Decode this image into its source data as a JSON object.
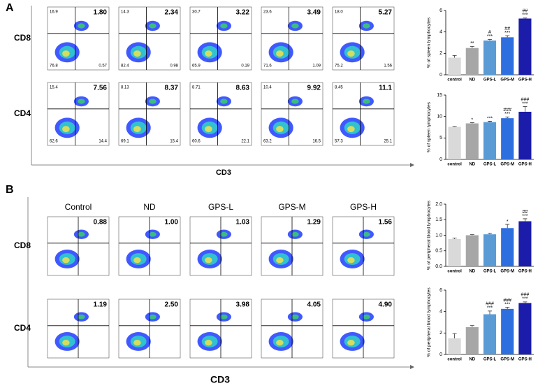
{
  "panel_a": {
    "label": "A",
    "row_labels": [
      "CD8",
      "CD4"
    ],
    "x_label": "CD3",
    "plots": [
      [
        {
          "q1": "16.9",
          "q2": "1.80",
          "q3": "76.8",
          "q4": "0.57"
        },
        {
          "q1": "14.3",
          "q2": "2.34",
          "q3": "82.4",
          "q4": "0.98"
        },
        {
          "q1": "30.7",
          "q2": "3.22",
          "q3": "65.9",
          "q4": "0.19"
        },
        {
          "q1": "23.6",
          "q2": "3.49",
          "q3": "71.6",
          "q4": "1.09"
        },
        {
          "q1": "18.0",
          "q2": "5.27",
          "q3": "75.2",
          "q4": "1.56"
        }
      ],
      [
        {
          "q1": "15.4",
          "q2": "7.56",
          "q3": "62.6",
          "q4": "14.4"
        },
        {
          "q1": "8.13",
          "q2": "8.37",
          "q3": "69.1",
          "q4": "15.4"
        },
        {
          "q1": "8.71",
          "q2": "8.63",
          "q3": "60.6",
          "q4": "22.1"
        },
        {
          "q1": "10.4",
          "q2": "9.92",
          "q3": "63.2",
          "q4": "16.5"
        },
        {
          "q1": "8.45",
          "q2": "11.1",
          "q3": "57.3",
          "q4": "25.1"
        }
      ]
    ]
  },
  "panel_b": {
    "label": "B",
    "row_labels": [
      "CD8",
      "CD4"
    ],
    "x_label": "CD3",
    "column_titles": [
      "Control",
      "ND",
      "GPS-L",
      "GPS-M",
      "GPS-H"
    ],
    "plots": [
      [
        {
          "q2": "0.88"
        },
        {
          "q2": "1.00"
        },
        {
          "q2": "1.03"
        },
        {
          "q2": "1.29"
        },
        {
          "q2": "1.56"
        }
      ],
      [
        {
          "q2": "1.19"
        },
        {
          "q2": "2.50"
        },
        {
          "q2": "3.98"
        },
        {
          "q2": "4.05"
        },
        {
          "q2": "4.90"
        }
      ]
    ]
  },
  "chart_data": [
    {
      "type": "bar",
      "y_label": "% of spleen lymphocytes",
      "categories": [
        "control",
        "ND",
        "GPS-L",
        "GPS-M",
        "GPS-H"
      ],
      "values": [
        1.6,
        2.5,
        3.2,
        3.5,
        5.25
      ],
      "errors": [
        0.2,
        0.15,
        0.1,
        0.15,
        0.05
      ],
      "colors": [
        "#d9d9d9",
        "#a6a6a6",
        "#5b9bd5",
        "#2e6fe0",
        "#1c1caa"
      ],
      "annotations": [
        [],
        [
          "**"
        ],
        [
          "#",
          "***"
        ],
        [
          "##",
          "***"
        ],
        [
          "##",
          "***"
        ]
      ],
      "ylim": [
        0,
        6
      ],
      "yticks": [
        0,
        2,
        4,
        6
      ]
    },
    {
      "type": "bar",
      "y_label": "% of spleen lymphocytes",
      "categories": [
        "control",
        "ND",
        "GPS-L",
        "GPS-M",
        "GPS-H"
      ],
      "values": [
        7.6,
        8.4,
        8.7,
        9.6,
        11.1
      ],
      "errors": [
        0.1,
        0.15,
        0.2,
        0.3,
        1.2
      ],
      "colors": [
        "#d9d9d9",
        "#a6a6a6",
        "#5b9bd5",
        "#2e6fe0",
        "#1c1caa"
      ],
      "annotations": [
        [],
        [
          "*"
        ],
        [
          "***"
        ],
        [
          "###",
          "***"
        ],
        [
          "###",
          "***"
        ]
      ],
      "ylim": [
        0,
        15
      ],
      "yticks": [
        0,
        5,
        10,
        15
      ]
    },
    {
      "type": "bar",
      "y_label": "% of peripheral blood lymphocytes",
      "categories": [
        "control",
        "ND",
        "GPS-L",
        "GPS-M",
        "GPS-H"
      ],
      "values": [
        0.88,
        1.0,
        1.03,
        1.23,
        1.45
      ],
      "errors": [
        0.03,
        0.02,
        0.04,
        0.12,
        0.08
      ],
      "colors": [
        "#d9d9d9",
        "#a6a6a6",
        "#5b9bd5",
        "#2e6fe0",
        "#1c1caa"
      ],
      "annotations": [
        [],
        [],
        [],
        [
          "*"
        ],
        [
          "##",
          "***"
        ]
      ],
      "ylim": [
        0,
        2
      ],
      "yticks": [
        {
          "value": 0,
          "label": "0.0"
        },
        {
          "value": 0.5,
          "label": "0.5"
        },
        {
          "value": 1,
          "label": "1.0"
        },
        {
          "value": 1.5,
          "label": "1.5"
        },
        {
          "value": 2,
          "label": "2.0"
        }
      ]
    },
    {
      "type": "bar",
      "y_label": "% of peripheral blood lymphocytes",
      "categories": [
        "control",
        "ND",
        "GPS-L",
        "GPS-M",
        "GPS-H"
      ],
      "values": [
        1.5,
        2.55,
        3.75,
        4.25,
        4.8
      ],
      "errors": [
        0.45,
        0.15,
        0.3,
        0.15,
        0.1
      ],
      "colors": [
        "#d9d9d9",
        "#a6a6a6",
        "#5b9bd5",
        "#2e6fe0",
        "#1c1caa"
      ],
      "annotations": [
        [],
        [],
        [
          "###",
          "***"
        ],
        [
          "###",
          "***"
        ],
        [
          "###",
          "***"
        ]
      ],
      "ylim": [
        0,
        6
      ],
      "yticks": [
        0,
        2,
        4,
        6
      ]
    }
  ]
}
